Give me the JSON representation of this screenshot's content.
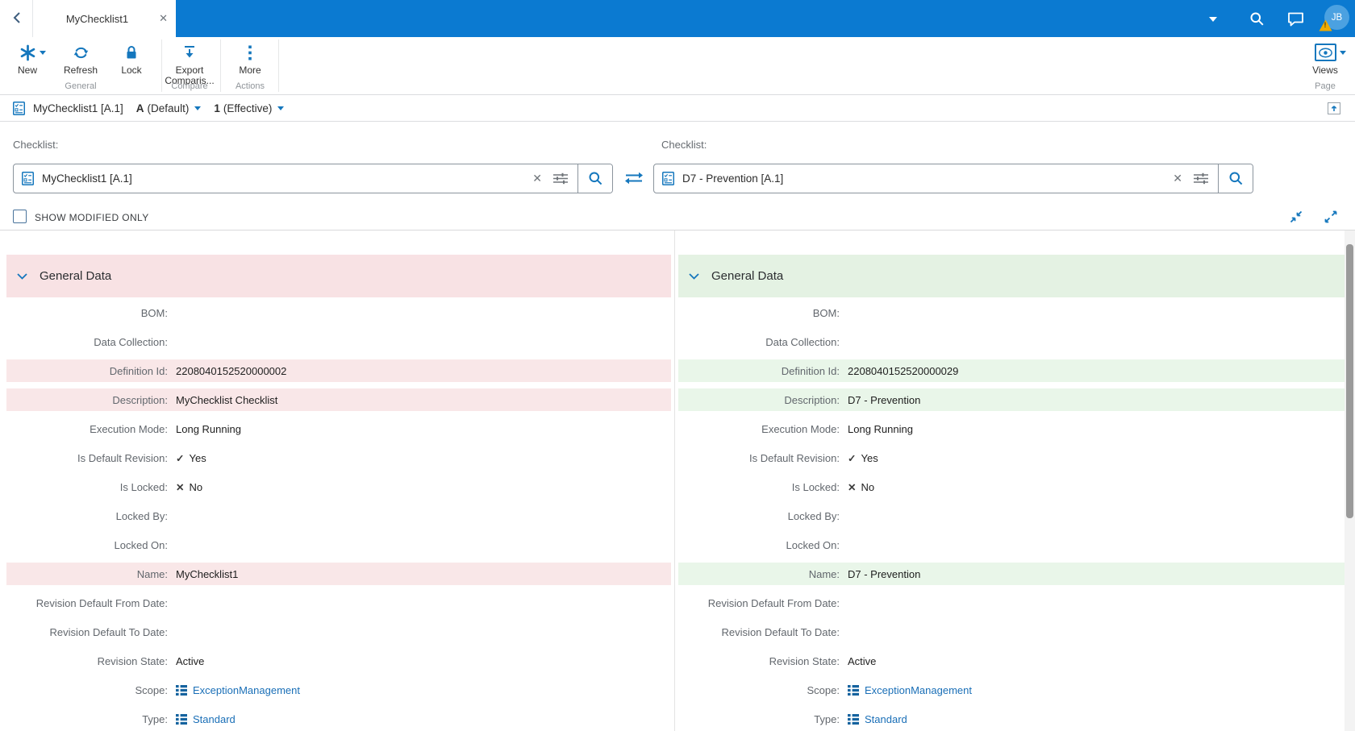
{
  "topbar": {
    "tab_title": "MyChecklist1"
  },
  "user": {
    "initials": "JB"
  },
  "ribbon": {
    "new_label": "New",
    "refresh_label": "Refresh",
    "lock_label": "Lock",
    "export_label_line1": "Export",
    "export_label_line2": "Comparis...",
    "more_label": "More",
    "views_label": "Views",
    "group_general": "General",
    "group_compare": "Compare",
    "group_actions": "Actions",
    "group_page": "Page"
  },
  "object_header": {
    "title": "MyChecklist1 [A.1]",
    "revision": "A",
    "revision_qualifier": "(Default)",
    "version": "1",
    "version_qualifier": "(Effective)"
  },
  "compare": {
    "left_field_label": "Checklist:",
    "right_field_label": "Checklist:",
    "left_value": "MyChecklist1 [A.1]",
    "right_value": "D7 - Prevention [A.1]",
    "show_modified_label": "SHOW MODIFIED ONLY"
  },
  "panels": {
    "left_title": "General Data",
    "right_title": "General Data",
    "rows": [
      {
        "label": "BOM:",
        "left": "",
        "right": "",
        "diff": false,
        "type": "text"
      },
      {
        "label": "Data Collection:",
        "left": "",
        "right": "",
        "diff": false,
        "type": "text"
      },
      {
        "label": "Definition Id:",
        "left": "2208040152520000002",
        "right": "2208040152520000029",
        "diff": true,
        "type": "text"
      },
      {
        "label": "Description:",
        "left": "MyChecklist Checklist",
        "right": "D7 - Prevention",
        "diff": true,
        "type": "text"
      },
      {
        "label": "Execution Mode:",
        "left": "Long Running",
        "right": "Long Running",
        "diff": false,
        "type": "text"
      },
      {
        "label": "Is Default Revision:",
        "left": "Yes",
        "right": "Yes",
        "diff": false,
        "type": "check"
      },
      {
        "label": "Is Locked:",
        "left": "No",
        "right": "No",
        "diff": false,
        "type": "cross"
      },
      {
        "label": "Locked By:",
        "left": "",
        "right": "",
        "diff": false,
        "type": "text"
      },
      {
        "label": "Locked On:",
        "left": "",
        "right": "",
        "diff": false,
        "type": "text"
      },
      {
        "label": "Name:",
        "left": "MyChecklist1",
        "right": "D7 - Prevention",
        "diff": true,
        "type": "text"
      },
      {
        "label": "Revision Default From Date:",
        "left": "",
        "right": "",
        "diff": false,
        "type": "text"
      },
      {
        "label": "Revision Default To Date:",
        "left": "",
        "right": "",
        "diff": false,
        "type": "text"
      },
      {
        "label": "Revision State:",
        "left": "Active",
        "right": "Active",
        "diff": false,
        "type": "text"
      },
      {
        "label": "Scope:",
        "left": "ExceptionManagement",
        "right": "ExceptionManagement",
        "diff": false,
        "type": "link"
      },
      {
        "label": "Type:",
        "left": "Standard",
        "right": "Standard",
        "diff": false,
        "type": "link"
      }
    ]
  },
  "icons": {
    "check_glyph": "✓",
    "cross_glyph": "✕",
    "clear_glyph": "✕",
    "tab_close_glyph": "✕"
  },
  "colors": {
    "topbar": "#0b7ad1",
    "avatar": "#4ba1e1",
    "icon": "#1577bd",
    "link": "#1a6fb7",
    "warning": "#f0ab00",
    "header_left": "#f8e2e4",
    "row_left": "#f9e7e8",
    "header_right": "#e4f2e3",
    "row_right": "#e9f6e9"
  }
}
